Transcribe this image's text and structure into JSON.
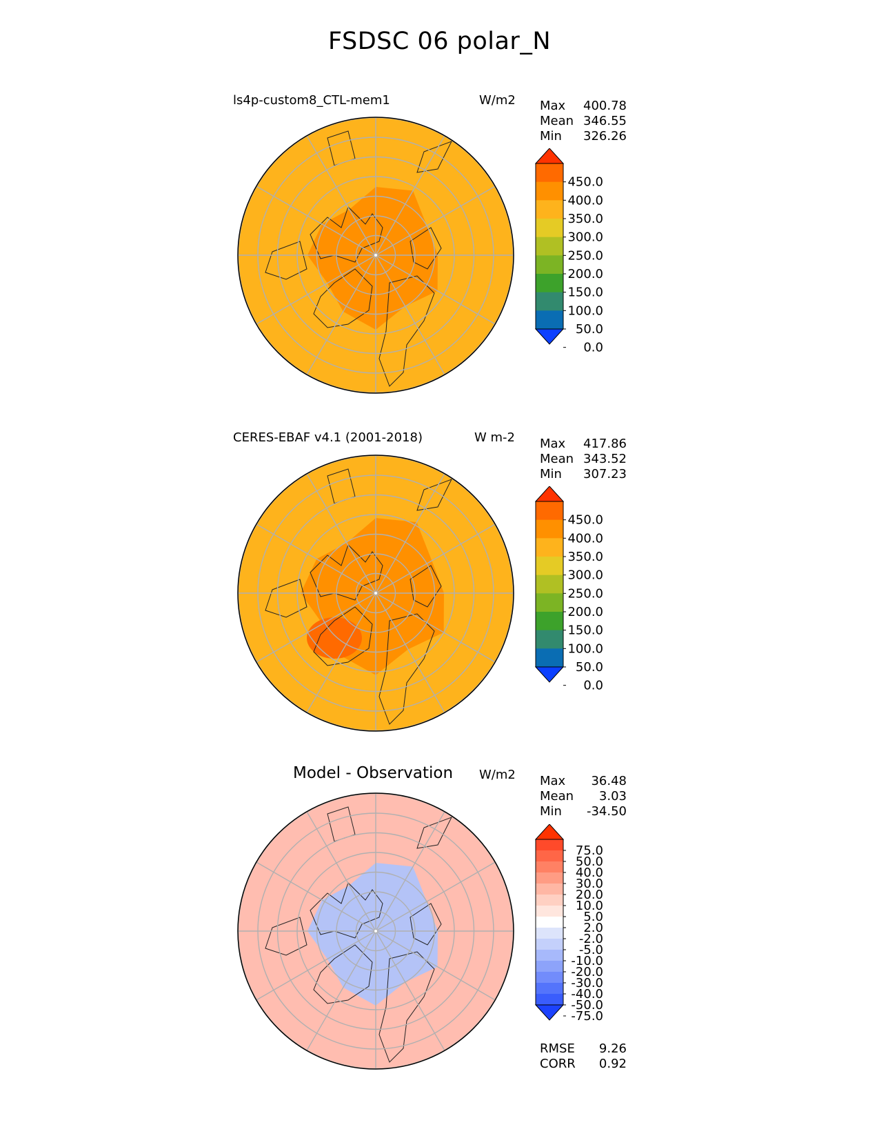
{
  "title": "FSDSC 06 polar_N",
  "panels": [
    {
      "label": "ls4p-custom8_CTL-mem1",
      "units": "W/m2",
      "stats": [
        {
          "name": "Max",
          "value": "400.78"
        },
        {
          "name": "Mean",
          "value": "346.55"
        },
        {
          "name": "Min",
          "value": "326.26"
        }
      ]
    },
    {
      "label": "CERES-EBAF v4.1 (2001-2018)",
      "units": "W m-2",
      "stats": [
        {
          "name": "Max",
          "value": "417.86"
        },
        {
          "name": "Mean",
          "value": "343.52"
        },
        {
          "name": "Min",
          "value": "307.23"
        }
      ]
    },
    {
      "label": "Model - Observation",
      "units": "W/m2",
      "stats": [
        {
          "name": "Max",
          "value": "36.48"
        },
        {
          "name": "Mean",
          "value": "3.03"
        },
        {
          "name": "Min",
          "value": "-34.50"
        }
      ],
      "extra_stats": [
        {
          "name": "RMSE",
          "value": "9.26"
        },
        {
          "name": "CORR",
          "value": "0.92"
        }
      ]
    }
  ],
  "chart_data": [
    {
      "type": "heatmap",
      "projection": "north polar stereographic",
      "title": "ls4p-custom8_CTL-mem1",
      "units": "W/m2",
      "colorbar": {
        "ticks": [
          "450.0",
          "400.0",
          "350.0",
          "300.0",
          "250.0",
          "200.0",
          "150.0",
          "100.0",
          "50.0",
          "0.0"
        ],
        "colors": [
          "#ff3300",
          "#ff6a00",
          "#ff9000",
          "#feb31c",
          "#e5cb25",
          "#b0c023",
          "#7cb424",
          "#3da22b",
          "#328a6e",
          "#0a6db3",
          "#0c40ff"
        ],
        "extend": "both"
      },
      "field": {
        "background": "#feb31c",
        "polar_region": "#ff9000",
        "polar_region_extent_deg": 20
      }
    },
    {
      "type": "heatmap",
      "projection": "north polar stereographic",
      "title": "CERES-EBAF v4.1 (2001-2018)",
      "units": "W m-2",
      "colorbar": {
        "ticks": [
          "450.0",
          "400.0",
          "350.0",
          "300.0",
          "250.0",
          "200.0",
          "150.0",
          "100.0",
          "50.0",
          "0.0"
        ],
        "colors": [
          "#ff3300",
          "#ff6a00",
          "#ff9000",
          "#feb31c",
          "#e5cb25",
          "#b0c023",
          "#7cb424",
          "#3da22b",
          "#328a6e",
          "#0a6db3",
          "#0c40ff"
        ],
        "extend": "both"
      },
      "field": {
        "background": "#feb31c",
        "polar_region": "#ff9000",
        "polar_region_extent_deg": 22,
        "greenland": "#ff6a00"
      }
    },
    {
      "type": "heatmap",
      "projection": "north polar stereographic",
      "title": "Model - Observation",
      "units": "W/m2",
      "colorbar": {
        "ticks": [
          "75.0",
          "50.0",
          "40.0",
          "30.0",
          "20.0",
          "10.0",
          "5.0",
          "2.0",
          "-2.0",
          "-5.0",
          "-10.0",
          "-20.0",
          "-30.0",
          "-40.0",
          "-50.0",
          "-75.0"
        ],
        "colors": [
          "#ff3300",
          "#ff4a2a",
          "#ff6647",
          "#ff8164",
          "#ff9c84",
          "#ffb7a4",
          "#ffd0c2",
          "#ffe6de",
          "#ffffff",
          "#dde4fb",
          "#c4d0fb",
          "#a7b9fb",
          "#8da3fa",
          "#728cfb",
          "#5474fb",
          "#3a5dfc",
          "#1c42fd"
        ],
        "extend": "both"
      },
      "field": {
        "background": "#ffbdb0",
        "polar_region": "#b4c3f7",
        "polar_region_extent_deg": 20
      }
    }
  ]
}
